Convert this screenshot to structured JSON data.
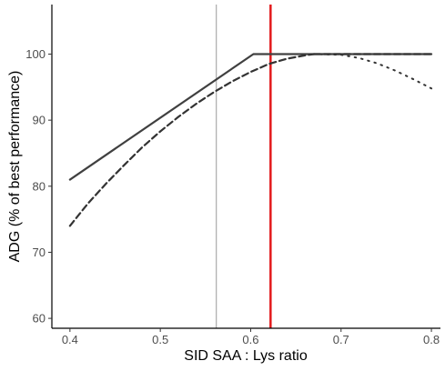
{
  "chart_data": {
    "type": "line",
    "xlabel": "SID SAA : Lys ratio",
    "ylabel": "ADG (% of best performance)",
    "xlim": [
      0.38,
      0.81
    ],
    "ylim": [
      58.5,
      107.5
    ],
    "x_ticks": [
      0.4,
      0.5,
      0.6,
      0.7,
      0.8
    ],
    "x_tick_labels": [
      "0.4",
      "0.5",
      "0.6",
      "0.7",
      "0.8"
    ],
    "y_ticks": [
      60,
      70,
      80,
      90,
      100
    ],
    "y_tick_labels": [
      "60",
      "70",
      "80",
      "90",
      "100"
    ],
    "grid": false,
    "legend": "none",
    "series": [
      {
        "style": "solid",
        "color": "#404040",
        "x": [
          0.4,
          0.603,
          0.8
        ],
        "y": [
          81,
          100,
          100
        ]
      },
      {
        "style": "dashed",
        "color": "#333333",
        "x": [
          0.4,
          0.42,
          0.44,
          0.46,
          0.48,
          0.5,
          0.52,
          0.54,
          0.56,
          0.58,
          0.6,
          0.62,
          0.64,
          0.66,
          0.67
        ],
        "y": [
          74,
          77.4,
          80.4,
          83.2,
          85.9,
          88.3,
          90.5,
          92.5,
          94.3,
          95.9,
          97.3,
          98.5,
          99.3,
          99.8,
          100
        ]
      },
      {
        "style": "dashed",
        "color": "#333333",
        "x": [
          0.67,
          0.8
        ],
        "y": [
          100,
          100
        ]
      },
      {
        "style": "dotted",
        "color": "#333333",
        "x": [
          0.67,
          0.7,
          0.72,
          0.74,
          0.76,
          0.78,
          0.8
        ],
        "y": [
          100,
          99.9,
          99.4,
          98.6,
          97.5,
          96.2,
          94.8
        ]
      }
    ],
    "reference_lines": [
      {
        "axis": "x",
        "value": 0.562,
        "color": "#999999"
      },
      {
        "axis": "x",
        "value": 0.622,
        "color": "#e31a1c"
      }
    ]
  }
}
